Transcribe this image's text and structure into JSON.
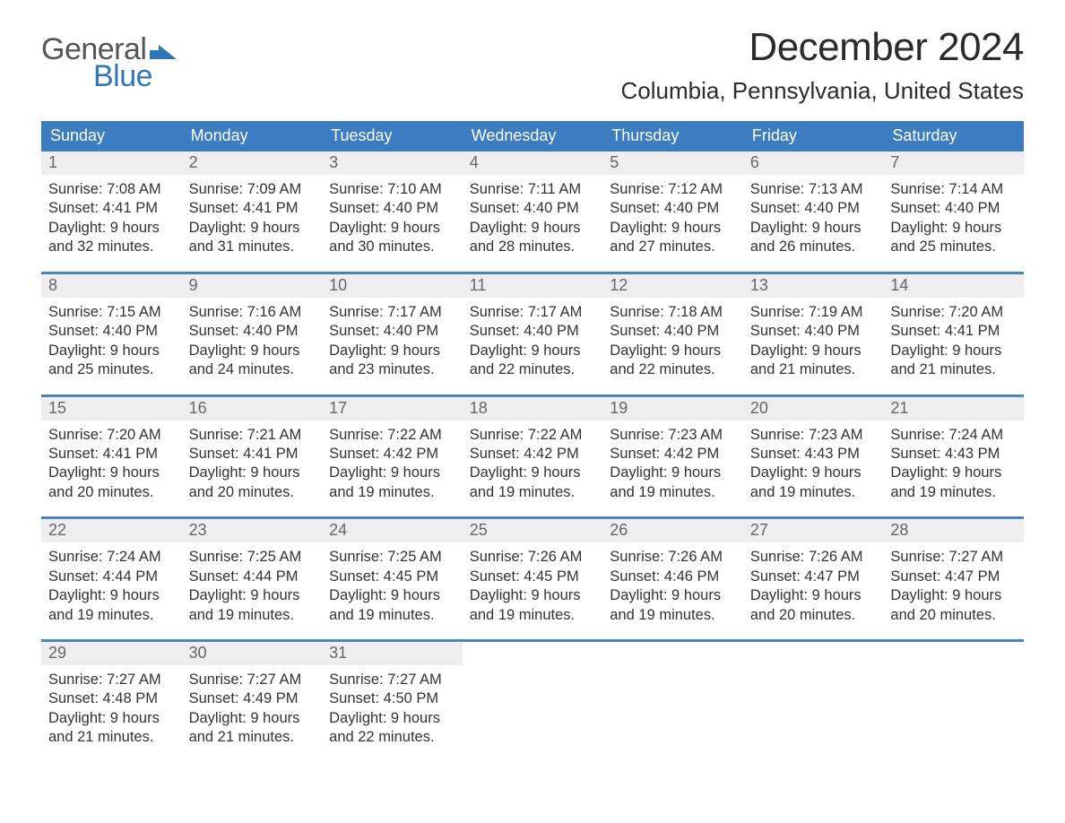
{
  "brand": {
    "word1": "General",
    "word2": "Blue"
  },
  "title": "December 2024",
  "location": "Columbia, Pennsylvania, United States",
  "colors": {
    "accent": "#2f77bb",
    "header_bg": "#3b7dc0",
    "date_bg": "#eeeeee",
    "rule": "#4a84bf",
    "text": "#383838",
    "title": "#2b2b2b",
    "white": "#ffffff"
  },
  "daysOfWeek": [
    "Sunday",
    "Monday",
    "Tuesday",
    "Wednesday",
    "Thursday",
    "Friday",
    "Saturday"
  ],
  "days": [
    {
      "n": 1,
      "sunrise": "7:08 AM",
      "sunset": "4:41 PM",
      "dlh": 9,
      "dlm": 32
    },
    {
      "n": 2,
      "sunrise": "7:09 AM",
      "sunset": "4:41 PM",
      "dlh": 9,
      "dlm": 31
    },
    {
      "n": 3,
      "sunrise": "7:10 AM",
      "sunset": "4:40 PM",
      "dlh": 9,
      "dlm": 30
    },
    {
      "n": 4,
      "sunrise": "7:11 AM",
      "sunset": "4:40 PM",
      "dlh": 9,
      "dlm": 28
    },
    {
      "n": 5,
      "sunrise": "7:12 AM",
      "sunset": "4:40 PM",
      "dlh": 9,
      "dlm": 27
    },
    {
      "n": 6,
      "sunrise": "7:13 AM",
      "sunset": "4:40 PM",
      "dlh": 9,
      "dlm": 26
    },
    {
      "n": 7,
      "sunrise": "7:14 AM",
      "sunset": "4:40 PM",
      "dlh": 9,
      "dlm": 25
    },
    {
      "n": 8,
      "sunrise": "7:15 AM",
      "sunset": "4:40 PM",
      "dlh": 9,
      "dlm": 25
    },
    {
      "n": 9,
      "sunrise": "7:16 AM",
      "sunset": "4:40 PM",
      "dlh": 9,
      "dlm": 24
    },
    {
      "n": 10,
      "sunrise": "7:17 AM",
      "sunset": "4:40 PM",
      "dlh": 9,
      "dlm": 23
    },
    {
      "n": 11,
      "sunrise": "7:17 AM",
      "sunset": "4:40 PM",
      "dlh": 9,
      "dlm": 22
    },
    {
      "n": 12,
      "sunrise": "7:18 AM",
      "sunset": "4:40 PM",
      "dlh": 9,
      "dlm": 22
    },
    {
      "n": 13,
      "sunrise": "7:19 AM",
      "sunset": "4:40 PM",
      "dlh": 9,
      "dlm": 21
    },
    {
      "n": 14,
      "sunrise": "7:20 AM",
      "sunset": "4:41 PM",
      "dlh": 9,
      "dlm": 21
    },
    {
      "n": 15,
      "sunrise": "7:20 AM",
      "sunset": "4:41 PM",
      "dlh": 9,
      "dlm": 20
    },
    {
      "n": 16,
      "sunrise": "7:21 AM",
      "sunset": "4:41 PM",
      "dlh": 9,
      "dlm": 20
    },
    {
      "n": 17,
      "sunrise": "7:22 AM",
      "sunset": "4:42 PM",
      "dlh": 9,
      "dlm": 19
    },
    {
      "n": 18,
      "sunrise": "7:22 AM",
      "sunset": "4:42 PM",
      "dlh": 9,
      "dlm": 19
    },
    {
      "n": 19,
      "sunrise": "7:23 AM",
      "sunset": "4:42 PM",
      "dlh": 9,
      "dlm": 19
    },
    {
      "n": 20,
      "sunrise": "7:23 AM",
      "sunset": "4:43 PM",
      "dlh": 9,
      "dlm": 19
    },
    {
      "n": 21,
      "sunrise": "7:24 AM",
      "sunset": "4:43 PM",
      "dlh": 9,
      "dlm": 19
    },
    {
      "n": 22,
      "sunrise": "7:24 AM",
      "sunset": "4:44 PM",
      "dlh": 9,
      "dlm": 19
    },
    {
      "n": 23,
      "sunrise": "7:25 AM",
      "sunset": "4:44 PM",
      "dlh": 9,
      "dlm": 19
    },
    {
      "n": 24,
      "sunrise": "7:25 AM",
      "sunset": "4:45 PM",
      "dlh": 9,
      "dlm": 19
    },
    {
      "n": 25,
      "sunrise": "7:26 AM",
      "sunset": "4:45 PM",
      "dlh": 9,
      "dlm": 19
    },
    {
      "n": 26,
      "sunrise": "7:26 AM",
      "sunset": "4:46 PM",
      "dlh": 9,
      "dlm": 19
    },
    {
      "n": 27,
      "sunrise": "7:26 AM",
      "sunset": "4:47 PM",
      "dlh": 9,
      "dlm": 20
    },
    {
      "n": 28,
      "sunrise": "7:27 AM",
      "sunset": "4:47 PM",
      "dlh": 9,
      "dlm": 20
    },
    {
      "n": 29,
      "sunrise": "7:27 AM",
      "sunset": "4:48 PM",
      "dlh": 9,
      "dlm": 21
    },
    {
      "n": 30,
      "sunrise": "7:27 AM",
      "sunset": "4:49 PM",
      "dlh": 9,
      "dlm": 21
    },
    {
      "n": 31,
      "sunrise": "7:27 AM",
      "sunset": "4:50 PM",
      "dlh": 9,
      "dlm": 22
    }
  ],
  "layout": {
    "startDayIndex": 0,
    "totalDays": 31,
    "columns": 7
  },
  "labels": {
    "sunrise": "Sunrise: ",
    "sunset": "Sunset: ",
    "daylight1": "Daylight: ",
    "daylight_hours_word": " hours",
    "daylight_and": "and ",
    "daylight_minutes_word": " minutes."
  },
  "typography": {
    "title_fontsize": 44,
    "location_fontsize": 26,
    "dow_fontsize": 18,
    "date_fontsize": 18,
    "info_fontsize": 16.5
  }
}
